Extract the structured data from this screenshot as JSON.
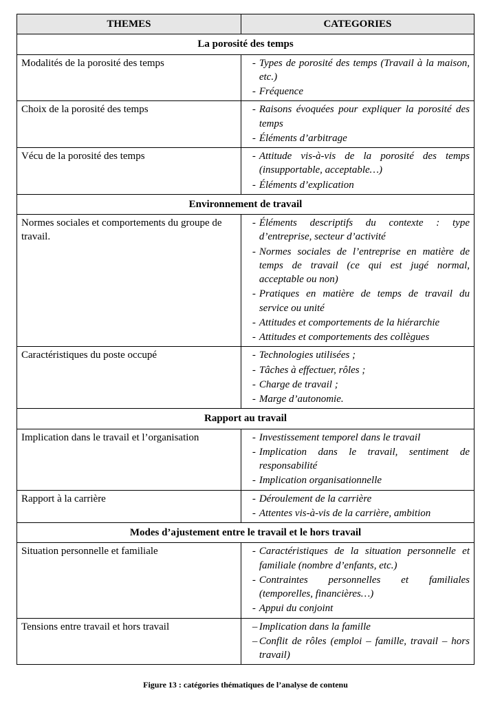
{
  "headers": {
    "themes": "THEMES",
    "categories": "CATEGORIES"
  },
  "sections": [
    {
      "title": "La porosité des temps",
      "rows": [
        {
          "theme": "Modalités de la porosité des temps",
          "cats": [
            "Types de porosité des temps (Travail à la maison, etc.)",
            " Fréquence"
          ]
        },
        {
          "theme": "Choix de la porosité des temps",
          "cats": [
            "Raisons évoquées pour expliquer la porosité des temps",
            "Éléments d’arbitrage"
          ]
        },
        {
          "theme": "Vécu de la porosité des temps",
          "cats": [
            "Attitude vis-à-vis de la porosité des temps (insupportable, acceptable…)",
            "Éléments d’explication"
          ]
        }
      ]
    },
    {
      "title": "Environnement de travail",
      "rows": [
        {
          "theme": "Normes sociales et comportements du groupe de travail.",
          "cats": [
            "Éléments descriptifs du contexte : type d’entreprise, secteur d’activité",
            "Normes sociales de l’entreprise en matière de temps de travail (ce qui est jugé normal, acceptable ou non)",
            "Pratiques en matière de temps de travail du service ou unité",
            "Attitudes et comportements de la hiérarchie",
            "Attitudes et comportements des collègues"
          ]
        },
        {
          "theme": "Caractéristiques du poste occupé",
          "cats": [
            "Technologies utilisées ;",
            "Tâches à effectuer, rôles ;",
            "Charge de travail ;",
            "Marge d’autonomie."
          ]
        }
      ]
    },
    {
      "title": "Rapport au travail",
      "rows": [
        {
          "theme": "Implication dans le travail et l’organisation",
          "cats": [
            "Investissement temporel dans le travail",
            "Implication dans le travail, sentiment de responsabilité",
            "Implication organisationnelle"
          ]
        },
        {
          "theme": "Rapport à la carrière",
          "cats": [
            " Déroulement de la carrière",
            "Attentes vis-à-vis de la carrière, ambition"
          ]
        }
      ]
    },
    {
      "title": "Modes d’ajustement entre le travail et le hors travail",
      "rows": [
        {
          "theme": "Situation personnelle et familiale",
          "cats": [
            "Caractéristiques de la situation personnelle et familiale (nombre d’enfants, etc.)",
            "Contraintes personnelles et familiales (temporelles, financières…)",
            "Appui du conjoint"
          ]
        },
        {
          "theme": "Tensions entre travail et hors travail",
          "dash": true,
          "cats": [
            " Implication dans la famille",
            " Conflit de rôles (emploi – famille, travail – hors travail)"
          ]
        }
      ]
    }
  ],
  "caption": "Figure 13 : catégories thématiques de l’analyse de contenu"
}
